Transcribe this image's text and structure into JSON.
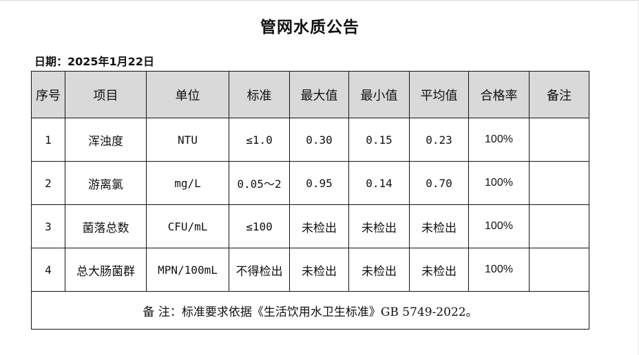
{
  "document": {
    "title": "管网水质公告",
    "date_label": "日期：",
    "date_value": "2025年1月22日"
  },
  "table": {
    "headers": [
      "序号",
      "项目",
      "单位",
      "标准",
      "最大值",
      "最小值",
      "平均值",
      "合格率",
      "备注"
    ],
    "rows": [
      {
        "no": "1",
        "item": "浑浊度",
        "unit": "NTU",
        "standard": "≤1.0",
        "max": "0.30",
        "min": "0.15",
        "avg": "0.23",
        "pass_rate": "100%",
        "remark": ""
      },
      {
        "no": "2",
        "item": "游离氯",
        "unit": "mg/L",
        "standard": "0.05～2",
        "max": "0.95",
        "min": "0.14",
        "avg": "0.70",
        "pass_rate": "100%",
        "remark": ""
      },
      {
        "no": "3",
        "item": "菌落总数",
        "unit": "CFU/mL",
        "standard": "≤100",
        "max": "未检出",
        "min": "未检出",
        "avg": "未检出",
        "pass_rate": "100%",
        "remark": ""
      },
      {
        "no": "4",
        "item": "总大肠菌群",
        "unit": "MPN/100mL",
        "standard": "不得检出",
        "max": "未检出",
        "min": "未检出",
        "avg": "未检出",
        "pass_rate": "100%",
        "remark": ""
      }
    ],
    "note": "备 注：标准要求依据《生活饮用水卫生标准》GB 5749-2022。"
  }
}
